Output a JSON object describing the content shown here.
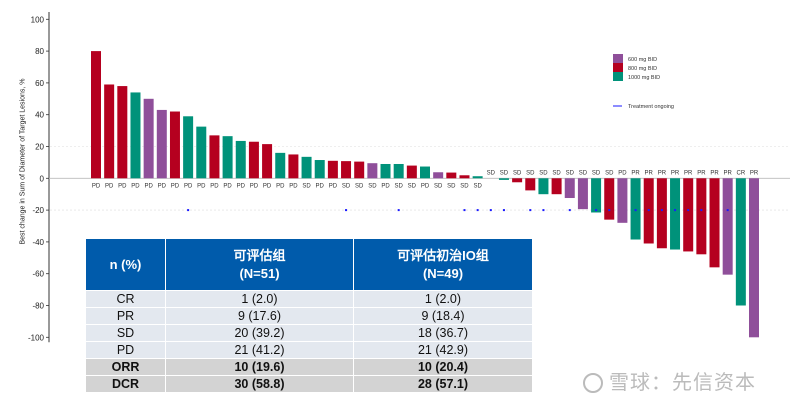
{
  "chart_data": {
    "type": "bar",
    "subtype": "waterfall",
    "ylabel": "Best change in Sum of Diameter of Target Lesions, %",
    "ylim": [
      -100,
      100
    ],
    "yticks": [
      100,
      80,
      60,
      40,
      20,
      0,
      -20,
      -40,
      -60,
      -80,
      -100
    ],
    "grid": "dashed lines at 20 and -20",
    "legend_placement": "top-right",
    "legend": [
      {
        "name": "600 mg BID",
        "color": "#8f4f9a"
      },
      {
        "name": "800 mg BID",
        "color": "#b5001f"
      },
      {
        "name": "1000 mg BID",
        "color": "#00927a"
      }
    ],
    "marker_legend": {
      "name": "Treatment ongoing",
      "color": "#1a1aff"
    },
    "bars": [
      {
        "value": 80,
        "response": "PD",
        "dose": "800 mg BID",
        "ongoing": false
      },
      {
        "value": 59,
        "response": "PD",
        "dose": "800 mg BID",
        "ongoing": false
      },
      {
        "value": 58,
        "response": "PD",
        "dose": "800 mg BID",
        "ongoing": false
      },
      {
        "value": 54,
        "response": "PD",
        "dose": "1000 mg BID",
        "ongoing": false
      },
      {
        "value": 50,
        "response": "PD",
        "dose": "600 mg BID",
        "ongoing": false
      },
      {
        "value": 43,
        "response": "PD",
        "dose": "600 mg BID",
        "ongoing": false
      },
      {
        "value": 42,
        "response": "PD",
        "dose": "800 mg BID",
        "ongoing": false
      },
      {
        "value": 39,
        "response": "PD",
        "dose": "1000 mg BID",
        "ongoing": true
      },
      {
        "value": 32.5,
        "response": "PD",
        "dose": "1000 mg BID",
        "ongoing": false
      },
      {
        "value": 27,
        "response": "PD",
        "dose": "800 mg BID",
        "ongoing": false
      },
      {
        "value": 26.5,
        "response": "PD",
        "dose": "1000 mg BID",
        "ongoing": false
      },
      {
        "value": 23.5,
        "response": "PD",
        "dose": "1000 mg BID",
        "ongoing": false
      },
      {
        "value": 23,
        "response": "PD",
        "dose": "800 mg BID",
        "ongoing": false
      },
      {
        "value": 21.5,
        "response": "PD",
        "dose": "800 mg BID",
        "ongoing": false
      },
      {
        "value": 16,
        "response": "PD",
        "dose": "1000 mg BID",
        "ongoing": false
      },
      {
        "value": 15,
        "response": "PD",
        "dose": "800 mg BID",
        "ongoing": false
      },
      {
        "value": 13.5,
        "response": "SD",
        "dose": "1000 mg BID",
        "ongoing": false
      },
      {
        "value": 11.5,
        "response": "PD",
        "dose": "1000 mg BID",
        "ongoing": false
      },
      {
        "value": 11,
        "response": "PD",
        "dose": "800 mg BID",
        "ongoing": false
      },
      {
        "value": 10.8,
        "response": "SD",
        "dose": "800 mg BID",
        "ongoing": true
      },
      {
        "value": 10.5,
        "response": "SD",
        "dose": "800 mg BID",
        "ongoing": false
      },
      {
        "value": 9.5,
        "response": "SD",
        "dose": "600 mg BID",
        "ongoing": false
      },
      {
        "value": 9,
        "response": "PD",
        "dose": "1000 mg BID",
        "ongoing": false
      },
      {
        "value": 9,
        "response": "SD",
        "dose": "1000 mg BID",
        "ongoing": true
      },
      {
        "value": 8,
        "response": "SD",
        "dose": "800 mg BID",
        "ongoing": false
      },
      {
        "value": 7.4,
        "response": "PD",
        "dose": "1000 mg BID",
        "ongoing": false
      },
      {
        "value": 3.8,
        "response": "SD",
        "dose": "600 mg BID",
        "ongoing": false
      },
      {
        "value": 3.6,
        "response": "SD",
        "dose": "800 mg BID",
        "ongoing": false
      },
      {
        "value": 1.9,
        "response": "SD",
        "dose": "800 mg BID",
        "ongoing": true
      },
      {
        "value": 1.3,
        "response": "SD",
        "dose": "1000 mg BID",
        "ongoing": true
      },
      {
        "value": 0,
        "response": "SD",
        "dose": "1000 mg BID",
        "ongoing": true
      },
      {
        "value": -1,
        "response": "SD",
        "dose": "1000 mg BID",
        "ongoing": true
      },
      {
        "value": -2.5,
        "response": "SD",
        "dose": "800 mg BID",
        "ongoing": false
      },
      {
        "value": -7.6,
        "response": "SD",
        "dose": "800 mg BID",
        "ongoing": true
      },
      {
        "value": -10,
        "response": "SD",
        "dose": "1000 mg BID",
        "ongoing": true
      },
      {
        "value": -10,
        "response": "SD",
        "dose": "800 mg BID",
        "ongoing": false
      },
      {
        "value": -12.4,
        "response": "SD",
        "dose": "600 mg BID",
        "ongoing": true
      },
      {
        "value": -19.4,
        "response": "SD",
        "dose": "600 mg BID",
        "ongoing": false
      },
      {
        "value": -21.5,
        "response": "SD",
        "dose": "1000 mg BID",
        "ongoing": true
      },
      {
        "value": -26,
        "response": "SD",
        "dose": "800 mg BID",
        "ongoing": true
      },
      {
        "value": -28,
        "response": "PD",
        "dose": "600 mg BID",
        "ongoing": false
      },
      {
        "value": -38.5,
        "response": "PR",
        "dose": "1000 mg BID",
        "ongoing": true
      },
      {
        "value": -41,
        "response": "PR",
        "dose": "800 mg BID",
        "ongoing": true
      },
      {
        "value": -44,
        "response": "PR",
        "dose": "800 mg BID",
        "ongoing": true
      },
      {
        "value": -44.8,
        "response": "PR",
        "dose": "1000 mg BID",
        "ongoing": true
      },
      {
        "value": -46,
        "response": "PR",
        "dose": "800 mg BID",
        "ongoing": true
      },
      {
        "value": -47.8,
        "response": "PR",
        "dose": "800 mg BID",
        "ongoing": true
      },
      {
        "value": -56,
        "response": "PR",
        "dose": "800 mg BID",
        "ongoing": false
      },
      {
        "value": -60.6,
        "response": "PR",
        "dose": "600 mg BID",
        "ongoing": true
      },
      {
        "value": -80,
        "response": "CR",
        "dose": "1000 mg BID",
        "ongoing": false
      },
      {
        "value": -100,
        "response": "PR",
        "dose": "600 mg BID",
        "ongoing": false
      }
    ]
  },
  "table": {
    "headers": [
      "n (%)",
      "可评估组",
      "(N=51)",
      "可评估初治IO组",
      "(N=49)"
    ],
    "rows": [
      {
        "label": "CR",
        "a": "1 (2.0)",
        "b": "1 (2.0)",
        "bold": false
      },
      {
        "label": "PR",
        "a": "9 (17.6)",
        "b": "9 (18.4)",
        "bold": false
      },
      {
        "label": "SD",
        "a": "20 (39.2)",
        "b": "18 (36.7)",
        "bold": false
      },
      {
        "label": "PD",
        "a": "21 (41.2)",
        "b": "21 (42.9)",
        "bold": false
      },
      {
        "label": "ORR",
        "a": "10 (19.6)",
        "b": "10 (20.4)",
        "bold": true
      },
      {
        "label": "DCR",
        "a": "30 (58.8)",
        "b": "28 (57.1)",
        "bold": true
      }
    ]
  },
  "watermark": "雪球：先信资本"
}
